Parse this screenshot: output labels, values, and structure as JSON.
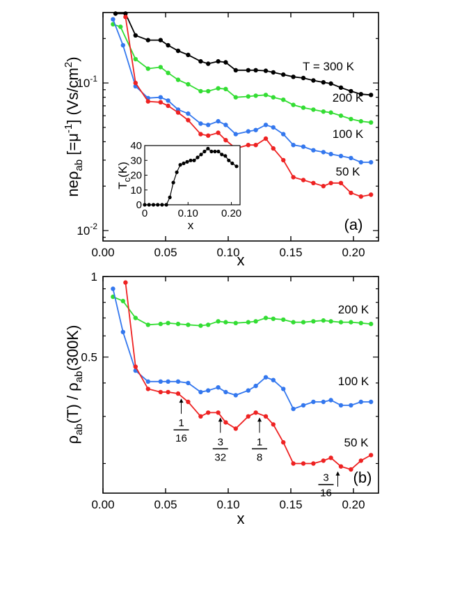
{
  "chart_data": [
    {
      "panel": "a",
      "type": "line",
      "panel_label": "(a)",
      "xlabel": "x",
      "ylabel": "neρab [=μ-1] (Vs/cm2)",
      "ylabel_parts": {
        "main": "neρ",
        "sub": "ab",
        "mid": " [=μ",
        "sup1": "-1",
        "mid2": "] (Vs/cm",
        "sup2": "2",
        "end": ")"
      },
      "xlim": [
        0,
        0.22
      ],
      "ylim": [
        0.0085,
        0.3
      ],
      "yscale": "log",
      "xticks": [
        0.0,
        0.05,
        0.1,
        0.15,
        0.2
      ],
      "xtick_labels": [
        "0.00",
        "0.05",
        "0.10",
        "0.15",
        "0.20"
      ],
      "yticks": [
        0.01,
        0.1
      ],
      "ytick_labels": [
        {
          "base": "10",
          "exp": "-2"
        },
        {
          "base": "10",
          "exp": "-1"
        }
      ],
      "series": [
        {
          "name": "T = 300 K",
          "color": "#000000",
          "x": [
            0.01,
            0.018,
            0.026,
            0.036,
            0.046,
            0.052,
            0.06,
            0.068,
            0.078,
            0.084,
            0.092,
            0.098,
            0.106,
            0.116,
            0.122,
            0.13,
            0.136,
            0.144,
            0.152,
            0.16,
            0.168,
            0.176,
            0.182,
            0.19,
            0.198,
            0.206,
            0.214
          ],
          "y": [
            0.295,
            0.295,
            0.21,
            0.195,
            0.195,
            0.18,
            0.165,
            0.155,
            0.14,
            0.135,
            0.14,
            0.138,
            0.122,
            0.122,
            0.122,
            0.121,
            0.118,
            0.114,
            0.11,
            0.108,
            0.104,
            0.101,
            0.099,
            0.093,
            0.088,
            0.084,
            0.083
          ]
        },
        {
          "name": "200 K",
          "color": "#33dd33",
          "x": [
            0.008,
            0.014,
            0.026,
            0.036,
            0.046,
            0.052,
            0.06,
            0.068,
            0.078,
            0.084,
            0.092,
            0.098,
            0.106,
            0.116,
            0.122,
            0.13,
            0.136,
            0.144,
            0.152,
            0.16,
            0.168,
            0.176,
            0.182,
            0.19,
            0.198,
            0.206,
            0.214
          ],
          "y": [
            0.25,
            0.24,
            0.145,
            0.125,
            0.128,
            0.117,
            0.105,
            0.098,
            0.088,
            0.088,
            0.092,
            0.091,
            0.08,
            0.081,
            0.082,
            0.083,
            0.08,
            0.077,
            0.071,
            0.068,
            0.066,
            0.064,
            0.063,
            0.06,
            0.057,
            0.055,
            0.054
          ]
        },
        {
          "name": "100 K",
          "color": "#3377ee",
          "x": [
            0.008,
            0.016,
            0.026,
            0.036,
            0.046,
            0.052,
            0.06,
            0.068,
            0.078,
            0.084,
            0.092,
            0.098,
            0.106,
            0.116,
            0.122,
            0.13,
            0.136,
            0.144,
            0.152,
            0.16,
            0.168,
            0.176,
            0.182,
            0.19,
            0.198,
            0.206,
            0.214
          ],
          "y": [
            0.27,
            0.18,
            0.095,
            0.079,
            0.08,
            0.076,
            0.066,
            0.062,
            0.053,
            0.052,
            0.055,
            0.052,
            0.045,
            0.047,
            0.048,
            0.052,
            0.05,
            0.045,
            0.038,
            0.037,
            0.035,
            0.034,
            0.033,
            0.032,
            0.031,
            0.029,
            0.029
          ]
        },
        {
          "name": "50 K",
          "color": "#ee2222",
          "x": [
            0.018,
            0.026,
            0.036,
            0.046,
            0.052,
            0.06,
            0.068,
            0.078,
            0.084,
            0.092,
            0.098,
            0.106,
            0.116,
            0.122,
            0.13,
            0.136,
            0.144,
            0.152,
            0.16,
            0.168,
            0.176,
            0.182,
            0.19,
            0.198,
            0.206,
            0.214
          ],
          "y": [
            0.28,
            0.1,
            0.075,
            0.074,
            0.07,
            0.063,
            0.056,
            0.045,
            0.044,
            0.046,
            0.041,
            0.036,
            0.038,
            0.038,
            0.042,
            0.036,
            0.03,
            0.023,
            0.022,
            0.021,
            0.02,
            0.021,
            0.021,
            0.018,
            0.017,
            0.0175
          ]
        }
      ],
      "series_labels": [
        "T = 300 K",
        "200 K",
        "100 K",
        "50 K"
      ],
      "inset": {
        "type": "line",
        "xlabel": "x",
        "ylabel_main": "T",
        "ylabel_sub": "c",
        "ylabel_end": "(K)",
        "xlim": [
          0,
          0.22
        ],
        "ylim": [
          0,
          40
        ],
        "xticks": [
          0,
          0.1,
          0.2
        ],
        "xtick_labels": [
          "0",
          "0.10",
          "0.20"
        ],
        "yticks": [
          0,
          10,
          20,
          30,
          40
        ],
        "ytick_labels": [
          "0",
          "10",
          "20",
          "30",
          "40"
        ],
        "color": "#000000",
        "x": [
          0.0,
          0.01,
          0.02,
          0.03,
          0.04,
          0.05,
          0.058,
          0.066,
          0.074,
          0.082,
          0.09,
          0.098,
          0.106,
          0.114,
          0.122,
          0.13,
          0.138,
          0.146,
          0.154,
          0.162,
          0.17,
          0.178,
          0.186,
          0.194,
          0.202,
          0.212
        ],
        "y": [
          0,
          0,
          0,
          0,
          0,
          0,
          5,
          15,
          22,
          27,
          28,
          29,
          30,
          30,
          32,
          34,
          36,
          38,
          36,
          36,
          36,
          34,
          33,
          30,
          28,
          26
        ]
      }
    },
    {
      "panel": "b",
      "type": "line",
      "panel_label": "(b)",
      "xlabel": "x",
      "ylabel": "ρab(T) / ρab(300K)",
      "ylabel_parts": {
        "a": "ρ",
        "b": "ab",
        "c": "(T) / ρ",
        "d": "ab",
        "e": "(300K)"
      },
      "xlim": [
        0,
        0.22
      ],
      "ylim": [
        0.155,
        1.0
      ],
      "yscale": "log",
      "xticks": [
        0.0,
        0.05,
        0.1,
        0.15,
        0.2
      ],
      "xtick_labels": [
        "0.00",
        "0.05",
        "0.10",
        "0.15",
        "0.20"
      ],
      "yticks": [
        0.5,
        1
      ],
      "ytick_labels": [
        "0.5",
        "1"
      ],
      "series": [
        {
          "name": "200 K",
          "color": "#33dd33",
          "x": [
            0.008,
            0.016,
            0.026,
            0.036,
            0.046,
            0.052,
            0.06,
            0.068,
            0.078,
            0.084,
            0.092,
            0.098,
            0.106,
            0.116,
            0.122,
            0.13,
            0.136,
            0.144,
            0.152,
            0.16,
            0.168,
            0.176,
            0.182,
            0.19,
            0.198,
            0.206,
            0.214
          ],
          "y": [
            0.84,
            0.81,
            0.7,
            0.66,
            0.665,
            0.67,
            0.665,
            0.66,
            0.655,
            0.66,
            0.68,
            0.675,
            0.67,
            0.675,
            0.68,
            0.7,
            0.695,
            0.69,
            0.675,
            0.675,
            0.68,
            0.685,
            0.68,
            0.675,
            0.675,
            0.67,
            0.665
          ]
        },
        {
          "name": "100 K",
          "color": "#3377ee",
          "x": [
            0.008,
            0.016,
            0.026,
            0.036,
            0.046,
            0.052,
            0.06,
            0.068,
            0.078,
            0.084,
            0.092,
            0.098,
            0.106,
            0.116,
            0.122,
            0.13,
            0.136,
            0.144,
            0.152,
            0.16,
            0.168,
            0.176,
            0.182,
            0.19,
            0.198,
            0.206,
            0.214
          ],
          "y": [
            0.9,
            0.62,
            0.445,
            0.405,
            0.405,
            0.405,
            0.405,
            0.4,
            0.37,
            0.375,
            0.385,
            0.37,
            0.36,
            0.375,
            0.39,
            0.42,
            0.41,
            0.38,
            0.32,
            0.33,
            0.34,
            0.34,
            0.345,
            0.33,
            0.33,
            0.34,
            0.34
          ]
        },
        {
          "name": "50 K",
          "color": "#ee2222",
          "x": [
            0.018,
            0.026,
            0.036,
            0.046,
            0.052,
            0.06,
            0.068,
            0.078,
            0.084,
            0.092,
            0.098,
            0.106,
            0.116,
            0.122,
            0.13,
            0.136,
            0.144,
            0.152,
            0.16,
            0.168,
            0.176,
            0.182,
            0.19,
            0.198,
            0.206,
            0.214
          ],
          "y": [
            0.95,
            0.46,
            0.38,
            0.37,
            0.37,
            0.365,
            0.34,
            0.3,
            0.31,
            0.31,
            0.285,
            0.27,
            0.3,
            0.31,
            0.3,
            0.28,
            0.24,
            0.2,
            0.2,
            0.2,
            0.205,
            0.21,
            0.195,
            0.19,
            0.205,
            0.215
          ]
        }
      ],
      "series_labels": [
        "200 K",
        "100 K",
        "50 K"
      ],
      "annotations": [
        {
          "num": "1",
          "den": "16",
          "x": 0.0625
        },
        {
          "num": "3",
          "den": "32",
          "x": 0.09375
        },
        {
          "num": "1",
          "den": "8",
          "x": 0.125
        },
        {
          "num": "3",
          "den": "16",
          "x": 0.1875
        }
      ]
    }
  ]
}
